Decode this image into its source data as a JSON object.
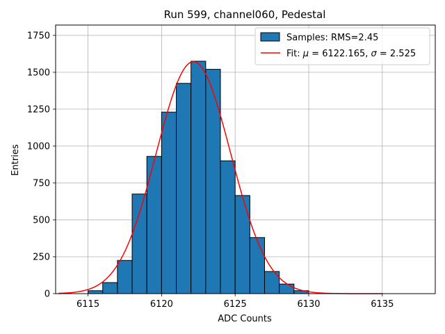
{
  "chart_data": {
    "type": "bar",
    "title": "Run 599, channel060, Pedestal",
    "xlabel": "ADC Counts",
    "ylabel": "Entries",
    "xlim": [
      6112.8,
      6138.6
    ],
    "ylim": [
      0,
      1820
    ],
    "x_ticks": [
      6115,
      6120,
      6125,
      6130,
      6135
    ],
    "y_ticks": [
      0,
      250,
      500,
      750,
      1000,
      1250,
      1500,
      1750
    ],
    "x_tick_labels": [
      "6115",
      "6120",
      "6125",
      "6130",
      "6135"
    ],
    "y_tick_labels": [
      "0",
      "250",
      "500",
      "750",
      "1000",
      "1250",
      "1500",
      "1750"
    ],
    "grid": true,
    "bin_width": 1,
    "histogram": {
      "name": "Samples: RMS=2.45",
      "color": "#1f77b4",
      "edgecolor": "#000000",
      "bin_left_edges": [
        6115,
        6116,
        6117,
        6118,
        6119,
        6120,
        6121,
        6122,
        6123,
        6124,
        6125,
        6126,
        6127,
        6128,
        6129
      ],
      "values": [
        20,
        75,
        225,
        675,
        930,
        1230,
        1425,
        1575,
        1520,
        900,
        665,
        380,
        150,
        65,
        20
      ]
    },
    "fit": {
      "name": "Fit: μ = 6122.165, σ = 2.525",
      "color": "#ff0000",
      "mu": 6122.165,
      "sigma": 2.525,
      "amplitude": 1572,
      "x_range": [
        6113,
        6135
      ]
    },
    "legend_location": "upper right",
    "legend": {
      "hist_prefix": "Samples: RMS=2.45",
      "fit_prefix": "Fit: ",
      "fit_mu_symbol": "μ",
      "fit_mu_text": " = 6122.165, ",
      "fit_sigma_symbol": "σ",
      "fit_sigma_text": " = 2.525"
    }
  }
}
